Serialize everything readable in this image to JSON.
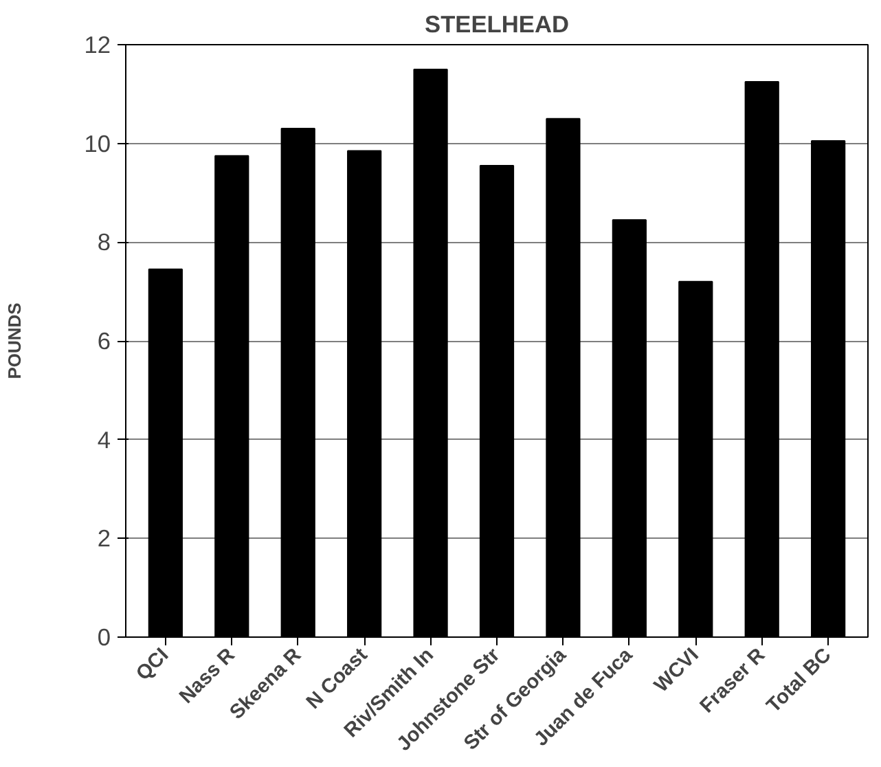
{
  "chart_data": {
    "type": "bar",
    "title": "STEELHEAD",
    "ylabel": "POUNDS",
    "categories": [
      "QCI",
      "Nass R",
      "Skeena R",
      "N Coast",
      "Riv/Smith In",
      "Johnstone Str",
      "Str of Georgia",
      "Juan de Fuca",
      "WCVI",
      "Fraser R",
      "Total BC"
    ],
    "values": [
      7.45,
      9.75,
      10.3,
      9.85,
      11.5,
      9.55,
      10.5,
      8.45,
      7.2,
      11.25,
      10.05
    ],
    "color": "#000000",
    "ylim": [
      0,
      12
    ],
    "yticks": [
      0,
      2,
      4,
      6,
      8,
      10,
      12
    ],
    "grid": "y"
  }
}
